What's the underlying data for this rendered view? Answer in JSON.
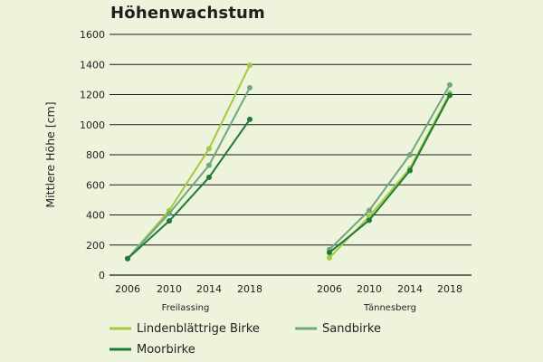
{
  "chart_data": {
    "type": "line",
    "title": "Höhenwachstum",
    "ylabel": "Mittlere Höhe [cm]",
    "ylim": [
      0,
      1600
    ],
    "yticks": [
      0,
      200,
      400,
      600,
      800,
      1000,
      1200,
      1400,
      1600
    ],
    "grid": true,
    "legend_position": "bottom",
    "groups": [
      {
        "name": "Freilassing",
        "x": [
          "2006",
          "2010",
          "2014",
          "2018"
        ]
      },
      {
        "name": "Tännesberg",
        "x": [
          "2006",
          "2010",
          "2014",
          "2018"
        ]
      }
    ],
    "series": [
      {
        "name": "Lindenblättrige Birke",
        "color": "#a3c940",
        "values": {
          "Freilassing": [
            110,
            430,
            840,
            1395
          ],
          "Tännesberg": [
            115,
            390,
            710,
            1210
          ]
        }
      },
      {
        "name": "Sandbirke",
        "color": "#6ea780",
        "values": {
          "Freilassing": [
            110,
            410,
            730,
            1245
          ],
          "Tännesberg": [
            170,
            430,
            800,
            1265
          ]
        }
      },
      {
        "name": "Moorbirke",
        "color": "#1d7a3a",
        "values": {
          "Freilassing": [
            110,
            360,
            650,
            1035
          ],
          "Tännesberg": [
            150,
            365,
            695,
            1195
          ]
        }
      }
    ]
  }
}
